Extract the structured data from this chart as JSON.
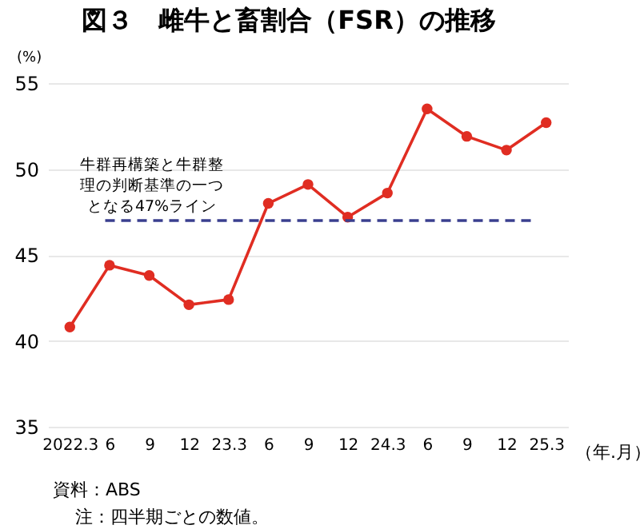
{
  "chart_data": {
    "type": "line",
    "title": "図３　雌牛と畜割合（FSR）の推移",
    "ylabel": "(%)",
    "xlabel": "（年.月）",
    "categories": [
      "2022.3",
      "6",
      "9",
      "12",
      "23.3",
      "6",
      "9",
      "12",
      "24.3",
      "6",
      "9",
      "12",
      "25.3"
    ],
    "series": [
      {
        "color": "#e02d22",
        "values": [
          40.8,
          44.4,
          43.8,
          42.1,
          42.4,
          48.0,
          49.1,
          47.2,
          48.6,
          53.5,
          51.9,
          51.1,
          52.7
        ]
      }
    ],
    "ylim": [
      35,
      55
    ],
    "yticks": [
      35,
      40,
      45,
      50,
      55
    ],
    "grid": "y",
    "marker": "circle",
    "line_style": "solid",
    "ref_lines": [
      {
        "axis": "y",
        "value": 47,
        "label": "牛群再構築と牛群整理の判断基準の一つとなる47%ライン",
        "color": "#3a3f8f",
        "line_style": "dashed"
      }
    ],
    "annotations": [
      "資料：ABS",
      "注：四半期ごとの数値。"
    ]
  }
}
